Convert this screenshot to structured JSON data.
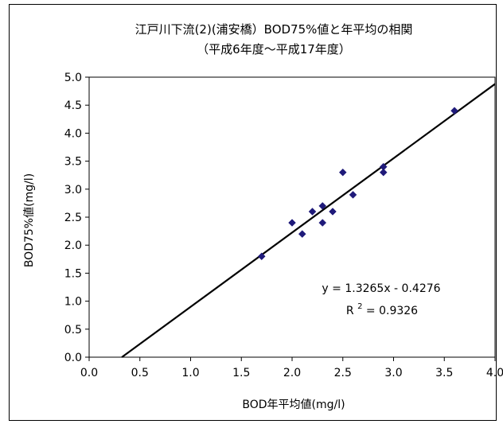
{
  "chart_data": {
    "type": "scatter",
    "title": "江戸川下流(2)(浦安橋）BOD75%値と年平均の相関",
    "subtitle": "（平成6年度～平成17年度）",
    "xlabel": "BOD年平均値(mg/l)",
    "ylabel": "BOD75%値(mg/l)",
    "xlim": [
      0.0,
      4.0
    ],
    "ylim": [
      0.0,
      5.0
    ],
    "x_ticks": [
      "0.0",
      "0.5",
      "1.0",
      "1.5",
      "2.0",
      "2.5",
      "3.0",
      "3.5",
      "4.0"
    ],
    "y_ticks": [
      "0.0",
      "0.5",
      "1.0",
      "1.5",
      "2.0",
      "2.5",
      "3.0",
      "3.5",
      "4.0",
      "4.5",
      "5.0"
    ],
    "grid": false,
    "points": [
      {
        "x": 1.7,
        "y": 1.8
      },
      {
        "x": 2.0,
        "y": 2.4
      },
      {
        "x": 2.1,
        "y": 2.2
      },
      {
        "x": 2.2,
        "y": 2.6
      },
      {
        "x": 2.3,
        "y": 2.7
      },
      {
        "x": 2.3,
        "y": 2.4
      },
      {
        "x": 2.4,
        "y": 2.6
      },
      {
        "x": 2.5,
        "y": 3.3
      },
      {
        "x": 2.6,
        "y": 2.9
      },
      {
        "x": 2.9,
        "y": 3.4
      },
      {
        "x": 2.9,
        "y": 3.3
      },
      {
        "x": 3.6,
        "y": 4.4
      }
    ],
    "trendline": {
      "slope": 1.3265,
      "intercept": -0.4276
    },
    "equation_text": "y = 1.3265x - 0.4276",
    "r2_prefix": "R",
    "r2_sup": "2",
    "r2_value": " = 0.9326",
    "marker_color": "#1f1a7a",
    "line_color": "#000000"
  }
}
